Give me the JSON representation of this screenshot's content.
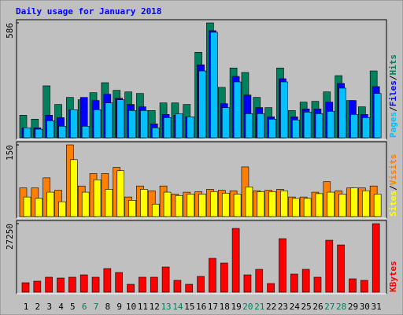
{
  "title": "Daily usage for January 2018",
  "categories": [
    "1",
    "2",
    "3",
    "4",
    "5",
    "6",
    "7",
    "8",
    "9",
    "10",
    "11",
    "12",
    "13",
    "14",
    "15",
    "16",
    "17",
    "18",
    "19",
    "20",
    "21",
    "22",
    "23",
    "24",
    "25",
    "26",
    "27",
    "28",
    "29",
    "30",
    "31"
  ],
  "category_colors": [
    "#000000",
    "#000000",
    "#000000",
    "#000000",
    "#000000",
    "#00805c",
    "#00805c",
    "#000000",
    "#000000",
    "#000000",
    "#000000",
    "#000000",
    "#00805c",
    "#00805c",
    "#000000",
    "#000000",
    "#000000",
    "#000000",
    "#000000",
    "#00805c",
    "#00805c",
    "#000000",
    "#000000",
    "#000000",
    "#000000",
    "#000000",
    "#00805c",
    "#00805c",
    "#000000",
    "#000000",
    "#000000"
  ],
  "chart_data": [
    {
      "type": "bar",
      "legend_separator": "/",
      "ylim": [
        0,
        586
      ],
      "yticks": [
        586
      ],
      "series": [
        {
          "name": "Hits",
          "color": "#00805c",
          "values": [
            115,
            95,
            265,
            170,
            206,
            194,
            230,
            281,
            242,
            234,
            226,
            139,
            178,
            178,
            170,
            436,
            586,
            257,
            356,
            333,
            206,
            154,
            356,
            139,
            182,
            186,
            234,
            317,
            190,
            158,
            341
          ]
        },
        {
          "name": "Files",
          "color": "#0000ff",
          "values": [
            51,
            51,
            115,
            103,
            143,
            206,
            190,
            222,
            202,
            170,
            158,
            71,
            119,
            115,
            107,
            372,
            546,
            174,
            313,
            218,
            154,
            107,
            301,
            107,
            147,
            147,
            182,
            277,
            190,
            119,
            261
          ]
        },
        {
          "name": "Pages",
          "color": "#00c0ff",
          "values": [
            51,
            44,
            87,
            59,
            143,
            59,
            143,
            178,
            194,
            139,
            139,
            51,
            103,
            123,
            107,
            341,
            538,
            154,
            285,
            123,
            123,
            95,
            285,
            91,
            131,
            123,
            135,
            253,
            119,
            103,
            226
          ]
        }
      ]
    },
    {
      "type": "bar",
      "legend_separator": "/",
      "ylim": [
        0,
        150
      ],
      "yticks": [
        150
      ],
      "series": [
        {
          "name": "Visits",
          "color": "#ff8000",
          "values": [
            60,
            60,
            81,
            55,
            150,
            64,
            90,
            90,
            103,
            41,
            64,
            54,
            64,
            47,
            51,
            52,
            57,
            55,
            54,
            104,
            54,
            55,
            57,
            41,
            41,
            51,
            73,
            54,
            60,
            60,
            64
          ]
        },
        {
          "name": "Sites",
          "color": "#ffff00",
          "values": [
            41,
            38,
            51,
            31,
            119,
            51,
            77,
            57,
            96,
            34,
            57,
            26,
            51,
            44,
            47,
            47,
            52,
            49,
            47,
            62,
            52,
            52,
            54,
            38,
            38,
            48,
            51,
            47,
            60,
            54,
            47
          ]
        }
      ]
    },
    {
      "type": "bar",
      "ylim": [
        0,
        27250
      ],
      "yticks": [
        27250
      ],
      "series": [
        {
          "name": "KBytes",
          "color": "#ff0000",
          "values": [
            3756,
            4382,
            5947,
            5634,
            5947,
            6886,
            5947,
            9390,
            7825,
            3130,
            5947,
            5947,
            10016,
            4695,
            3130,
            6260,
            13459,
            11581,
            25354,
            6886,
            9077,
            3443,
            21285,
            7199,
            9077,
            5947,
            20659,
            18781,
            5321,
            4695,
            27250
          ]
        }
      ]
    }
  ]
}
